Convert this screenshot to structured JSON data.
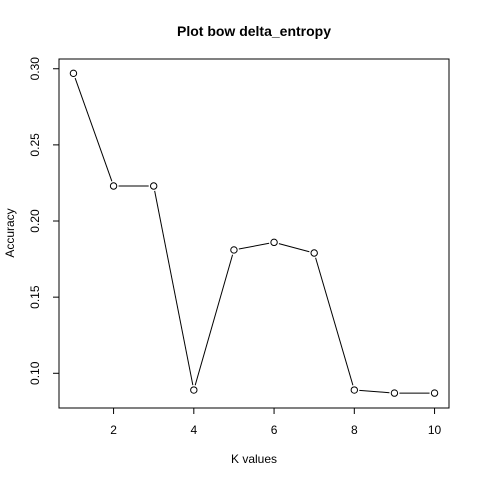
{
  "chart_data": {
    "type": "line",
    "title": "Plot bow delta_entropy",
    "xlabel": "K values",
    "ylabel": "Accuracy",
    "xlim": [
      0.64,
      10.36
    ],
    "ylim": [
      0.0772,
      0.3064
    ],
    "x_ticks": [
      2,
      4,
      6,
      8,
      10
    ],
    "y_ticks": [
      0.1,
      0.15,
      0.2,
      0.25,
      0.3
    ],
    "x_tick_labels": [
      "2",
      "4",
      "6",
      "8",
      "10"
    ],
    "y_tick_labels": [
      "0.10",
      "0.15",
      "0.20",
      "0.25",
      "0.30"
    ],
    "grid": false,
    "marker": "open-circle",
    "series": [
      {
        "x": [
          1,
          2,
          3,
          4,
          5,
          6,
          7,
          8,
          9,
          10
        ],
        "values": [
          0.297,
          0.223,
          0.223,
          0.089,
          0.181,
          0.186,
          0.179,
          0.089,
          0.087,
          0.087
        ]
      }
    ],
    "colors": {
      "line": "#000000",
      "marker_fill": "#ffffff",
      "axis": "#000000"
    }
  }
}
